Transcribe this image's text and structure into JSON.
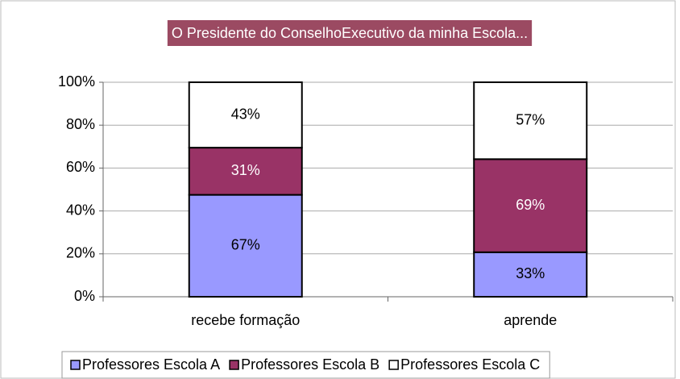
{
  "chart_data": {
    "type": "bar",
    "stack": "percent",
    "title": "O Presidente do ConselhoExecutivo da minha Escola...",
    "title_color": "#9b4a62",
    "categories": [
      "recebe formação",
      "aprende"
    ],
    "series": [
      {
        "name": "Professores Escola A",
        "color": "#9999ff",
        "label_color": "#000000",
        "values": [
          67,
          33
        ],
        "value_labels": [
          "67%",
          "33%"
        ]
      },
      {
        "name": "Professores Escola B",
        "color": "#993366",
        "label_color": "#ffffff",
        "values": [
          31,
          69
        ],
        "value_labels": [
          "31%",
          "69%"
        ]
      },
      {
        "name": "Professores Escola C",
        "color": "#ffffff",
        "label_color": "#000000",
        "values": [
          43,
          57
        ],
        "value_labels": [
          "43%",
          "57%"
        ]
      }
    ],
    "ylim": [
      0,
      100
    ],
    "yticks": [
      {
        "value": 0,
        "label": "0%"
      },
      {
        "value": 20,
        "label": "20%"
      },
      {
        "value": 40,
        "label": "40%"
      },
      {
        "value": 60,
        "label": "60%"
      },
      {
        "value": 80,
        "label": "80%"
      },
      {
        "value": 100,
        "label": "100%"
      }
    ],
    "grid": true,
    "legend": "bottom"
  }
}
